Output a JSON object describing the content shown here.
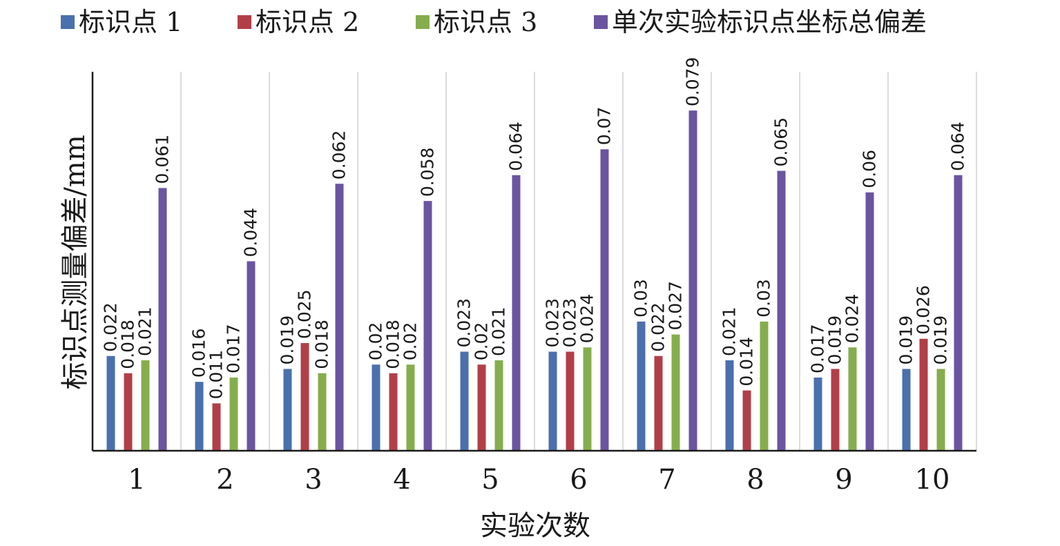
{
  "chart_data": {
    "type": "bar",
    "title": "",
    "xlabel": "实验次数",
    "ylabel": "标识点测量偏差/mm",
    "categories": [
      "1",
      "2",
      "3",
      "4",
      "5",
      "6",
      "7",
      "8",
      "9",
      "10"
    ],
    "series": [
      {
        "name": "标识点 1",
        "color": "#4a70ad",
        "values": [
          0.022,
          0.016,
          0.019,
          0.02,
          0.023,
          0.023,
          0.03,
          0.021,
          0.017,
          0.019
        ]
      },
      {
        "name": "标识点 2",
        "color": "#b13f48",
        "values": [
          0.018,
          0.011,
          0.025,
          0.018,
          0.02,
          0.023,
          0.022,
          0.014,
          0.019,
          0.026
        ]
      },
      {
        "name": "标识点 3",
        "color": "#86ad4d",
        "values": [
          0.021,
          0.017,
          0.018,
          0.02,
          0.021,
          0.024,
          0.027,
          0.03,
          0.024,
          0.019
        ]
      },
      {
        "name": "单次实验标识点坐标总偏差",
        "color": "#6b54a0",
        "values": [
          0.061,
          0.044,
          0.062,
          0.058,
          0.064,
          0.07,
          0.079,
          0.065,
          0.06,
          0.064
        ]
      }
    ],
    "ylim": [
      0,
      0.088
    ],
    "grid": "vertical category separators",
    "legend": "top",
    "data_labels": true
  }
}
